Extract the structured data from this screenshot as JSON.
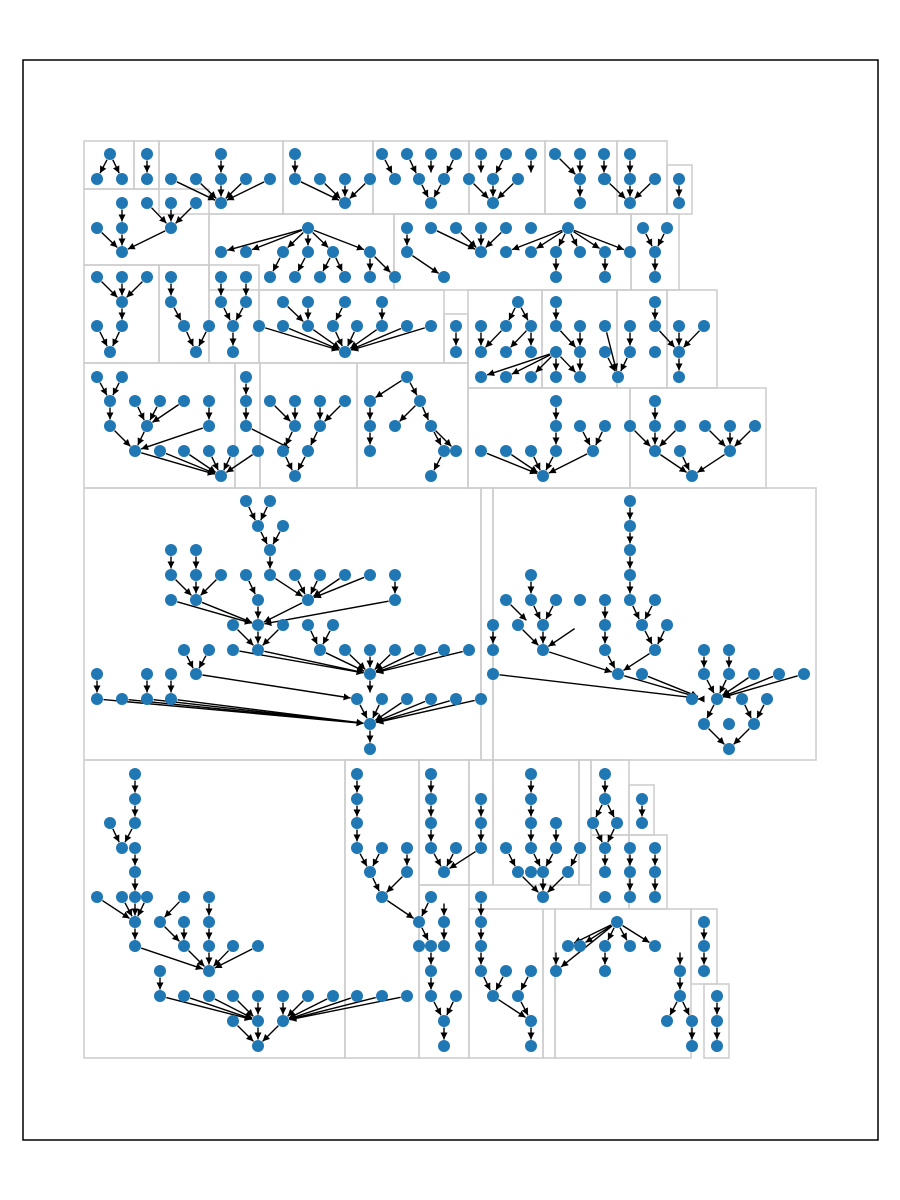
{
  "figure": {
    "background": "#ffffff",
    "frame_color": "#000000",
    "box_color": "#cccccc",
    "node_color": "#1f77b4",
    "edge_color": "#000000",
    "title": "",
    "caption": ""
  },
  "diagram": {
    "type": "forest of directed trees, each enclosed in a gray bounding box",
    "edges_directed": true,
    "node_labels_visible": false,
    "groups": 36
  }
}
